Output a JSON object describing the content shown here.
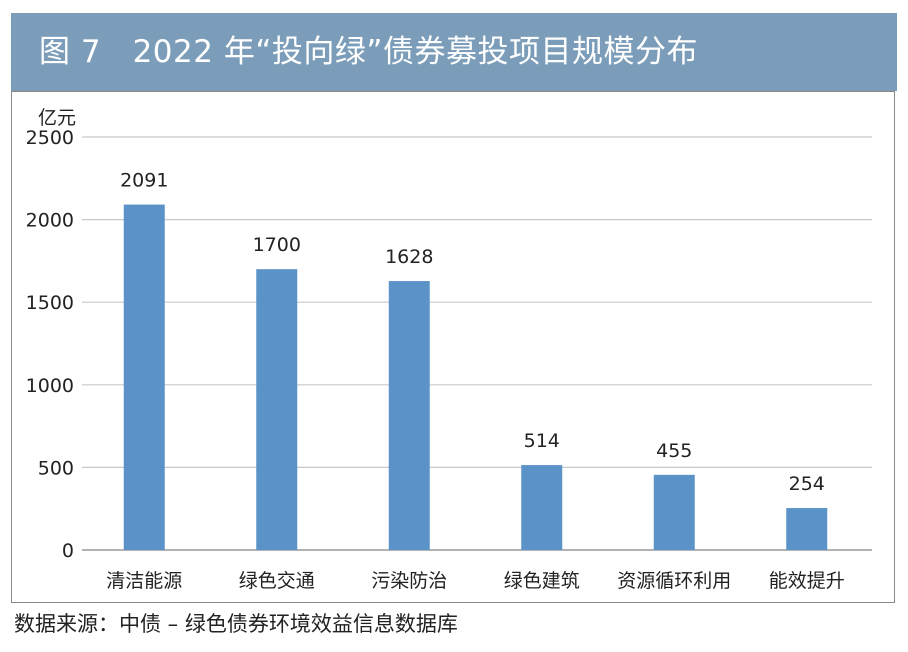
{
  "header": {
    "title": "图 7　2022 年“投向绿”债券募投项目规模分布"
  },
  "footer": {
    "source": "数据来源：中债 – 绿色债券环境效益信息数据库"
  },
  "colors": {
    "title_bar": "#7b9db9",
    "bar": "#5b93c9",
    "grid": "#c8c8c8"
  },
  "chart_data": {
    "type": "bar",
    "title": "",
    "xlabel": "",
    "ylabel": "亿元",
    "ylim": [
      0,
      2500
    ],
    "yticks": [
      0,
      500,
      1000,
      1500,
      2000,
      2500
    ],
    "grid": true,
    "categories": [
      "清洁能源",
      "绿色交通",
      "污染防治",
      "绿色建筑",
      "资源循环利用",
      "能效提升"
    ],
    "values": [
      2091,
      1700,
      1628,
      514,
      455,
      254
    ],
    "data_labels": [
      "2091",
      "1700",
      "1628",
      "514",
      "455",
      "254"
    ]
  }
}
